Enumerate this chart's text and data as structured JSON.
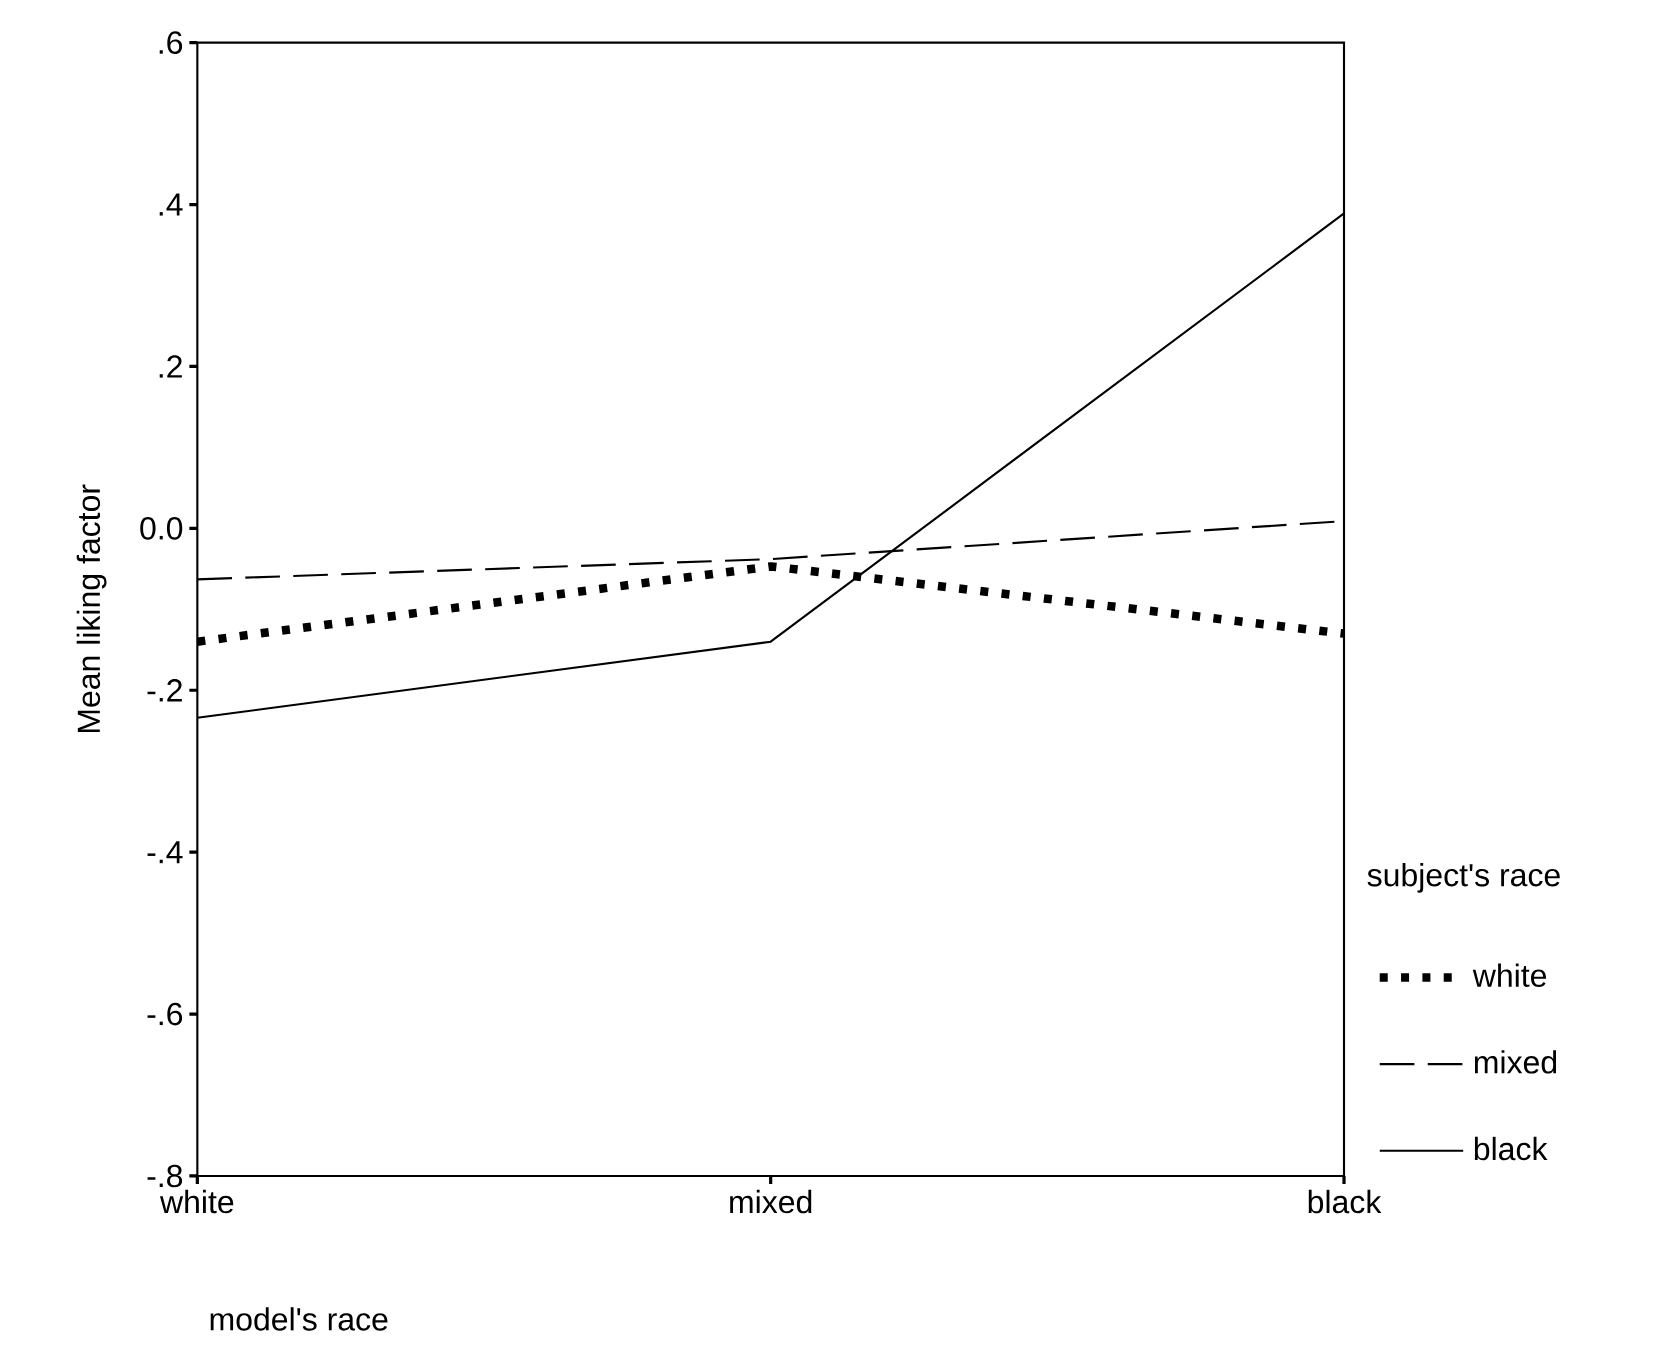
{
  "chart_data": {
    "type": "line",
    "xlabel": "model's race",
    "ylabel": "Mean liking factor",
    "legend_title": "subject's race",
    "legend": "right",
    "categories": [
      "white",
      "mixed",
      "black"
    ],
    "ylim": [
      -0.8,
      0.6
    ],
    "yticks": [
      {
        "value": -0.8,
        "label": "-.8"
      },
      {
        "value": -0.6,
        "label": "-.6"
      },
      {
        "value": -0.4,
        "label": "-.4"
      },
      {
        "value": -0.2,
        "label": "-.2"
      },
      {
        "value": 0,
        "label": "0.0"
      },
      {
        "value": 0.2,
        "label": ".2"
      },
      {
        "value": 0.4,
        "label": ".4"
      },
      {
        "value": 0.6,
        "label": ".6"
      }
    ],
    "grid": false,
    "marker": "none",
    "series": [
      {
        "name": "white",
        "color": "#000000",
        "line_style": "dotted",
        "values": [
          -0.14,
          -0.047,
          -0.13
        ]
      },
      {
        "name": "mixed",
        "color": "#000000",
        "line_style": "dashed",
        "values": [
          -0.063,
          -0.038,
          0.009
        ]
      },
      {
        "name": "black",
        "color": "#000000",
        "line_style": "solid",
        "values": [
          -0.234,
          -0.14,
          0.389
        ]
      }
    ]
  }
}
